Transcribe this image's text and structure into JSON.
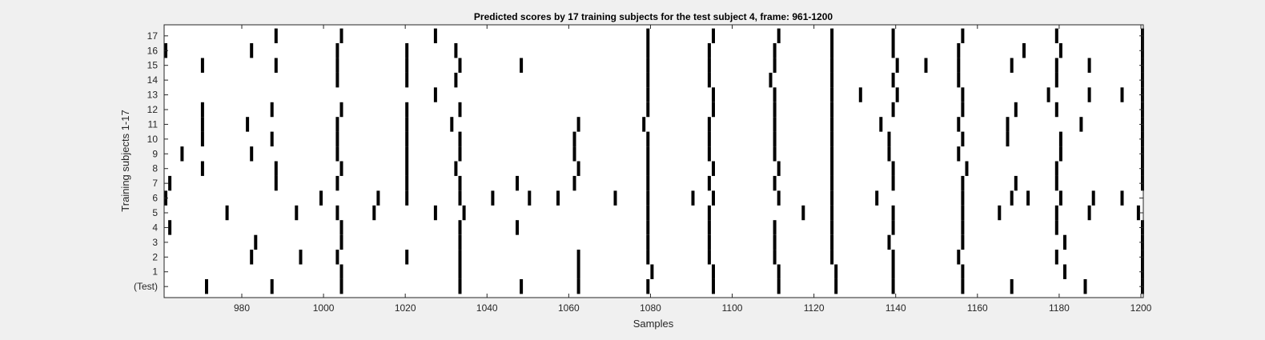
{
  "chart_data": {
    "type": "raster",
    "title": "Predicted scores by 17 training subjects for the test subject 4, frame: 961-1200",
    "xlabel": "Samples",
    "ylabel": "Training subjects 1-17",
    "xlim": [
      961,
      1200
    ],
    "xticks": [
      980,
      1000,
      1020,
      1040,
      1060,
      1080,
      1100,
      1120,
      1140,
      1160,
      1180,
      1200
    ],
    "ytick_labels": [
      "(Test)",
      "1",
      "2",
      "3",
      "4",
      "5",
      "6",
      "7",
      "8",
      "9",
      "10",
      "11",
      "12",
      "13",
      "14",
      "15",
      "16",
      "17"
    ],
    "grid": false,
    "series": [
      {
        "name": "(Test)",
        "values": [
          971,
          987,
          1004,
          1033,
          1048,
          1062,
          1079,
          1095,
          1111,
          1125,
          1139,
          1156,
          1168,
          1186,
          1200
        ]
      },
      {
        "name": "1",
        "values": [
          1004,
          1033,
          1062,
          1080,
          1095,
          1111,
          1125,
          1139,
          1156,
          1181,
          1200
        ]
      },
      {
        "name": "2",
        "values": [
          982,
          994,
          1003,
          1020,
          1033,
          1062,
          1079,
          1094,
          1110,
          1124,
          1139,
          1155,
          1179,
          1200
        ]
      },
      {
        "name": "3",
        "values": [
          983,
          1004,
          1033,
          1079,
          1094,
          1110,
          1124,
          1138,
          1156,
          1181,
          1200
        ]
      },
      {
        "name": "4",
        "values": [
          962,
          1004,
          1033,
          1047,
          1079,
          1094,
          1110,
          1124,
          1139,
          1156,
          1179,
          1200
        ]
      },
      {
        "name": "5",
        "values": [
          976,
          993,
          1003,
          1012,
          1027,
          1034,
          1079,
          1094,
          1117,
          1124,
          1139,
          1156,
          1165,
          1179,
          1187,
          1199
        ]
      },
      {
        "name": "6",
        "values": [
          961,
          999,
          1013,
          1020,
          1033,
          1041,
          1050,
          1057,
          1071,
          1079,
          1090,
          1095,
          1111,
          1124,
          1135,
          1156,
          1168,
          1172,
          1180,
          1188,
          1195
        ]
      },
      {
        "name": "7",
        "values": [
          962,
          988,
          1003,
          1020,
          1033,
          1047,
          1061,
          1079,
          1094,
          1110,
          1124,
          1139,
          1156,
          1169,
          1179,
          1200
        ]
      },
      {
        "name": "8",
        "values": [
          970,
          988,
          1004,
          1020,
          1032,
          1062,
          1079,
          1095,
          1111,
          1124,
          1139,
          1157,
          1179,
          1200
        ]
      },
      {
        "name": "9",
        "values": [
          965,
          982,
          1003,
          1020,
          1033,
          1061,
          1079,
          1094,
          1110,
          1124,
          1138,
          1155,
          1180,
          1200
        ]
      },
      {
        "name": "10",
        "values": [
          970,
          987,
          1003,
          1020,
          1033,
          1061,
          1079,
          1094,
          1110,
          1124,
          1138,
          1156,
          1167,
          1180,
          1200
        ]
      },
      {
        "name": "11",
        "values": [
          970,
          981,
          1003,
          1020,
          1031,
          1062,
          1078,
          1094,
          1110,
          1124,
          1136,
          1155,
          1167,
          1185,
          1200
        ]
      },
      {
        "name": "12",
        "values": [
          970,
          987,
          1004,
          1020,
          1033,
          1079,
          1095,
          1110,
          1124,
          1139,
          1156,
          1169,
          1179,
          1200
        ]
      },
      {
        "name": "13",
        "values": [
          1027,
          1079,
          1095,
          1110,
          1124,
          1131,
          1140,
          1156,
          1177,
          1187,
          1195,
          1200
        ]
      },
      {
        "name": "14",
        "values": [
          1003,
          1020,
          1032,
          1079,
          1094,
          1109,
          1124,
          1139,
          1155,
          1179,
          1200
        ]
      },
      {
        "name": "15",
        "values": [
          970,
          988,
          1003,
          1020,
          1033,
          1048,
          1079,
          1094,
          1110,
          1124,
          1140,
          1147,
          1155,
          1168,
          1179,
          1187,
          1200
        ]
      },
      {
        "name": "16",
        "values": [
          961,
          982,
          1003,
          1020,
          1032,
          1079,
          1094,
          1110,
          1124,
          1139,
          1155,
          1171,
          1180,
          1200
        ]
      },
      {
        "name": "17",
        "values": [
          988,
          1004,
          1027,
          1079,
          1095,
          1111,
          1124,
          1139,
          1156,
          1179,
          1200
        ]
      }
    ]
  }
}
